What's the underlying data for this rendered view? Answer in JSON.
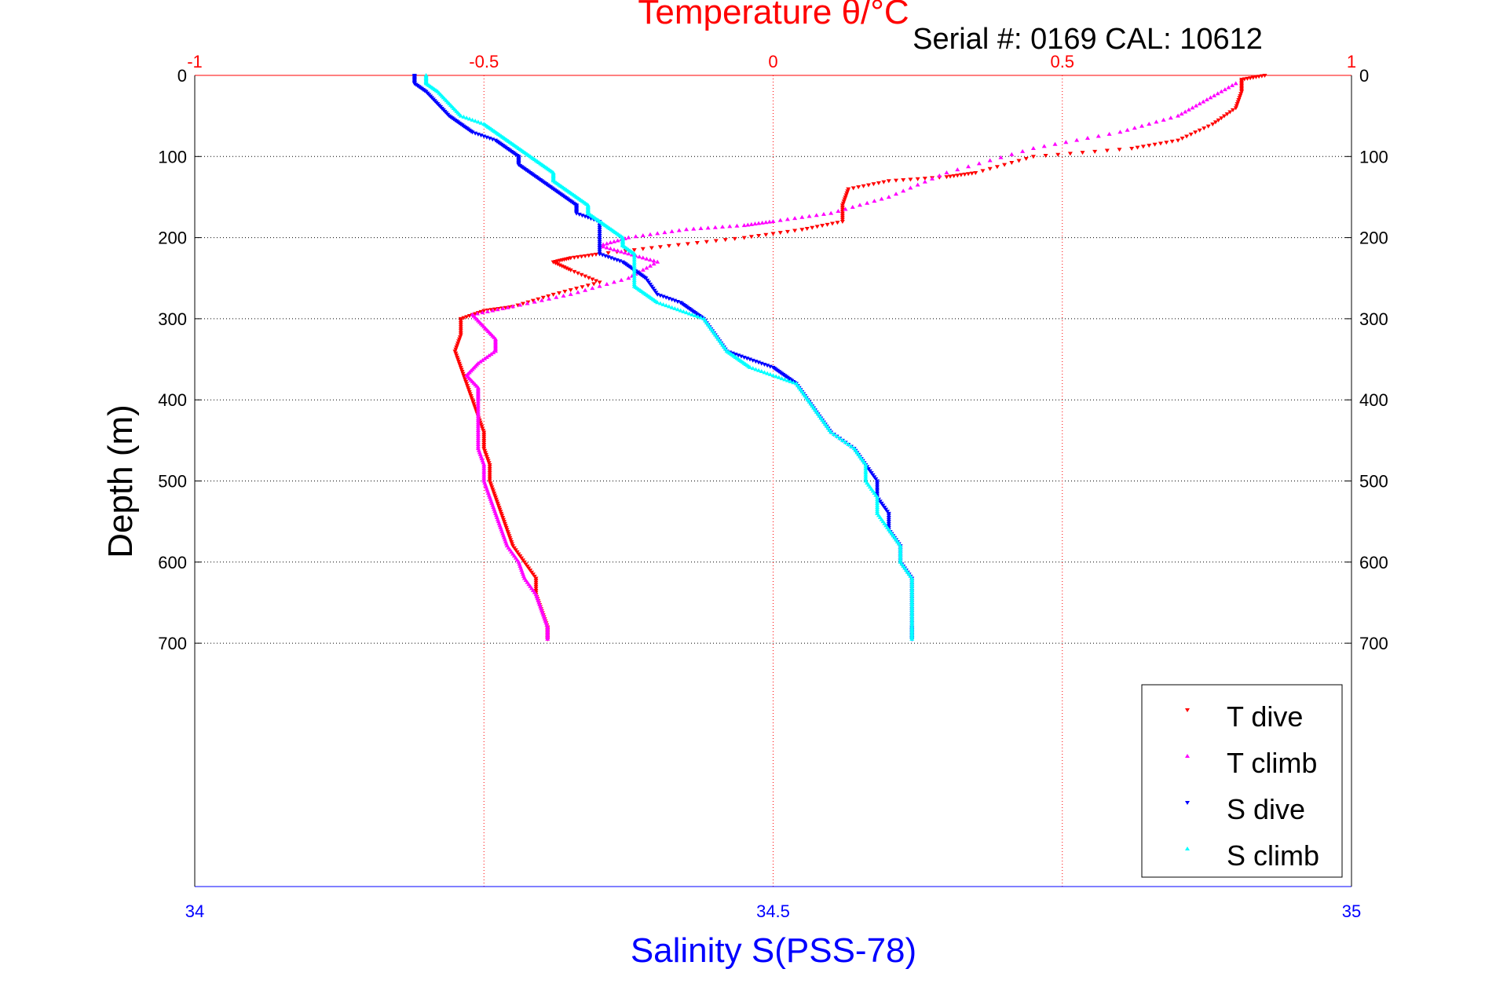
{
  "chart_data": {
    "type": "scatter",
    "title": "Temperature θ/°C",
    "subtitle": "Serial #: 0169 CAL: 10612",
    "ylabel": "Depth (m)",
    "xlabel_bottom": "Salinity S(PSS-78)",
    "y_axis": {
      "reversed": true,
      "lim": [
        0,
        1000
      ],
      "ticks": [
        0,
        100,
        200,
        300,
        400,
        500,
        600,
        700
      ],
      "tick_labels": [
        "0",
        "100",
        "200",
        "300",
        "400",
        "500",
        "600",
        "700"
      ]
    },
    "x_top": {
      "lim": [
        -1,
        1
      ],
      "ticks": [
        -1,
        -0.5,
        0,
        0.5,
        1
      ],
      "tick_labels": [
        "-1",
        "-0.5",
        "0",
        "0.5",
        "1"
      ],
      "color": "#ff0000"
    },
    "x_bottom": {
      "lim": [
        34,
        35
      ],
      "ticks": [
        34,
        34.5,
        35
      ],
      "tick_labels": [
        "34",
        "34.5",
        "35"
      ],
      "color": "#0000ff"
    },
    "grid": true,
    "legend_position": "bottom-right",
    "series": [
      {
        "name": "T dive",
        "axis": "top",
        "color": "#ff0000",
        "marker": "triangle-down",
        "points": [
          [
            0.85,
            0
          ],
          [
            0.81,
            5
          ],
          [
            0.81,
            20
          ],
          [
            0.8,
            40
          ],
          [
            0.76,
            60
          ],
          [
            0.7,
            80
          ],
          [
            0.62,
            90
          ],
          [
            0.45,
            100
          ],
          [
            0.35,
            120
          ],
          [
            0.3,
            125
          ],
          [
            0.2,
            130
          ],
          [
            0.13,
            140
          ],
          [
            0.12,
            160
          ],
          [
            0.12,
            180
          ],
          [
            0.05,
            190
          ],
          [
            -0.05,
            200
          ],
          [
            -0.18,
            210
          ],
          [
            -0.3,
            220
          ],
          [
            -0.35,
            225
          ],
          [
            -0.38,
            230
          ],
          [
            -0.35,
            240
          ],
          [
            -0.3,
            255
          ],
          [
            -0.38,
            270
          ],
          [
            -0.45,
            285
          ],
          [
            -0.5,
            290
          ],
          [
            -0.54,
            300
          ],
          [
            -0.54,
            320
          ],
          [
            -0.55,
            340
          ],
          [
            -0.54,
            360
          ],
          [
            -0.53,
            380
          ],
          [
            -0.52,
            400
          ],
          [
            -0.51,
            420
          ],
          [
            -0.5,
            440
          ],
          [
            -0.5,
            460
          ],
          [
            -0.49,
            480
          ],
          [
            -0.49,
            500
          ],
          [
            -0.48,
            520
          ],
          [
            -0.47,
            540
          ],
          [
            -0.46,
            560
          ],
          [
            -0.45,
            580
          ],
          [
            -0.43,
            600
          ],
          [
            -0.41,
            620
          ],
          [
            -0.41,
            640
          ],
          [
            -0.4,
            660
          ],
          [
            -0.39,
            680
          ],
          [
            -0.39,
            695
          ]
        ]
      },
      {
        "name": "T climb",
        "axis": "top",
        "color": "#ff00ff",
        "marker": "triangle-up",
        "points": [
          [
            0.8,
            10
          ],
          [
            0.75,
            30
          ],
          [
            0.7,
            50
          ],
          [
            0.6,
            70
          ],
          [
            0.45,
            90
          ],
          [
            0.3,
            120
          ],
          [
            0.2,
            150
          ],
          [
            0.1,
            170
          ],
          [
            0.0,
            180
          ],
          [
            -0.05,
            185
          ],
          [
            -0.15,
            190
          ],
          [
            -0.25,
            200
          ],
          [
            -0.3,
            210
          ],
          [
            -0.25,
            220
          ],
          [
            -0.2,
            230
          ],
          [
            -0.25,
            250
          ],
          [
            -0.35,
            270
          ],
          [
            -0.45,
            285
          ],
          [
            -0.52,
            295
          ],
          [
            -0.5,
            310
          ],
          [
            -0.48,
            325
          ],
          [
            -0.48,
            340
          ],
          [
            -0.51,
            355
          ],
          [
            -0.53,
            370
          ],
          [
            -0.51,
            385
          ],
          [
            -0.51,
            400
          ],
          [
            -0.51,
            420
          ],
          [
            -0.51,
            440
          ],
          [
            -0.51,
            460
          ],
          [
            -0.5,
            480
          ],
          [
            -0.5,
            500
          ],
          [
            -0.49,
            520
          ],
          [
            -0.48,
            540
          ],
          [
            -0.47,
            560
          ],
          [
            -0.46,
            580
          ],
          [
            -0.44,
            600
          ],
          [
            -0.43,
            620
          ],
          [
            -0.41,
            640
          ],
          [
            -0.4,
            660
          ],
          [
            -0.39,
            680
          ],
          [
            -0.39,
            695
          ]
        ]
      },
      {
        "name": "S dive",
        "axis": "bottom",
        "color": "#0000ff",
        "marker": "triangle-down",
        "points": [
          [
            34.19,
            0
          ],
          [
            34.19,
            10
          ],
          [
            34.2,
            20
          ],
          [
            34.21,
            35
          ],
          [
            34.22,
            50
          ],
          [
            34.23,
            60
          ],
          [
            34.24,
            70
          ],
          [
            34.26,
            80
          ],
          [
            34.27,
            90
          ],
          [
            34.28,
            100
          ],
          [
            34.28,
            110
          ],
          [
            34.29,
            120
          ],
          [
            34.3,
            130
          ],
          [
            34.31,
            140
          ],
          [
            34.32,
            150
          ],
          [
            34.33,
            160
          ],
          [
            34.33,
            170
          ],
          [
            34.35,
            180
          ],
          [
            34.35,
            200
          ],
          [
            34.35,
            220
          ],
          [
            34.37,
            230
          ],
          [
            34.38,
            240
          ],
          [
            34.39,
            250
          ],
          [
            34.4,
            270
          ],
          [
            34.42,
            280
          ],
          [
            34.43,
            290
          ],
          [
            34.44,
            300
          ],
          [
            34.45,
            320
          ],
          [
            34.46,
            340
          ],
          [
            34.48,
            350
          ],
          [
            34.5,
            360
          ],
          [
            34.51,
            370
          ],
          [
            34.52,
            380
          ],
          [
            34.53,
            400
          ],
          [
            34.54,
            420
          ],
          [
            34.55,
            440
          ],
          [
            34.57,
            460
          ],
          [
            34.58,
            480
          ],
          [
            34.59,
            500
          ],
          [
            34.59,
            520
          ],
          [
            34.6,
            540
          ],
          [
            34.6,
            560
          ],
          [
            34.61,
            580
          ],
          [
            34.61,
            600
          ],
          [
            34.62,
            620
          ],
          [
            34.62,
            640
          ],
          [
            34.62,
            660
          ],
          [
            34.62,
            680
          ],
          [
            34.62,
            695
          ]
        ]
      },
      {
        "name": "S climb",
        "axis": "bottom",
        "color": "#00ffff",
        "marker": "triangle-up",
        "points": [
          [
            34.2,
            0
          ],
          [
            34.2,
            10
          ],
          [
            34.21,
            20
          ],
          [
            34.22,
            35
          ],
          [
            34.23,
            50
          ],
          [
            34.25,
            60
          ],
          [
            34.26,
            70
          ],
          [
            34.27,
            80
          ],
          [
            34.28,
            90
          ],
          [
            34.29,
            100
          ],
          [
            34.3,
            110
          ],
          [
            34.31,
            120
          ],
          [
            34.31,
            130
          ],
          [
            34.32,
            140
          ],
          [
            34.33,
            150
          ],
          [
            34.34,
            160
          ],
          [
            34.34,
            170
          ],
          [
            34.35,
            180
          ],
          [
            34.36,
            190
          ],
          [
            34.37,
            200
          ],
          [
            34.37,
            210
          ],
          [
            34.38,
            220
          ],
          [
            34.38,
            240
          ],
          [
            34.38,
            260
          ],
          [
            34.39,
            270
          ],
          [
            34.4,
            280
          ],
          [
            34.42,
            290
          ],
          [
            34.44,
            300
          ],
          [
            34.45,
            320
          ],
          [
            34.46,
            340
          ],
          [
            34.47,
            350
          ],
          [
            34.48,
            360
          ],
          [
            34.5,
            370
          ],
          [
            34.52,
            380
          ],
          [
            34.53,
            400
          ],
          [
            34.54,
            420
          ],
          [
            34.55,
            440
          ],
          [
            34.57,
            460
          ],
          [
            34.58,
            480
          ],
          [
            34.58,
            500
          ],
          [
            34.59,
            520
          ],
          [
            34.59,
            540
          ],
          [
            34.6,
            560
          ],
          [
            34.61,
            580
          ],
          [
            34.61,
            600
          ],
          [
            34.62,
            620
          ],
          [
            34.62,
            640
          ],
          [
            34.62,
            660
          ],
          [
            34.62,
            680
          ],
          [
            34.62,
            695
          ]
        ]
      }
    ]
  }
}
